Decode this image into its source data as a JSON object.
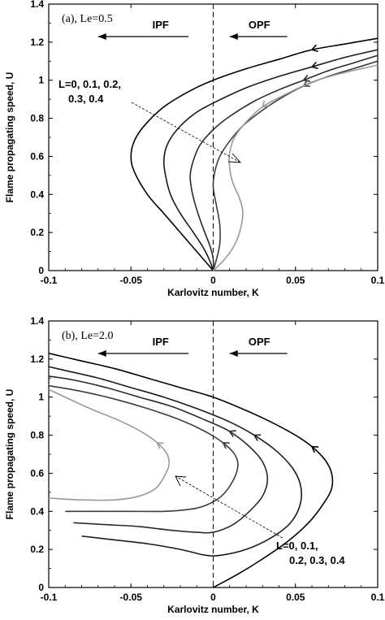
{
  "chart_data": [
    {
      "type": "line",
      "panel_label": "(a), Le=0.5",
      "xlabel": "Karlovitz number, K",
      "ylabel": "Flame propagating speed, U",
      "xlim": [
        -0.1,
        0.1
      ],
      "ylim": [
        0,
        1.4
      ],
      "xticks": [
        -0.1,
        -0.05,
        0,
        0.05,
        0.1
      ],
      "xtick_labels": [
        "-0.1",
        "-0.05",
        "0",
        "0.05",
        "0.1"
      ],
      "yticks": [
        0,
        0.2,
        0.4,
        0.6,
        0.8,
        1,
        1.2,
        1.4
      ],
      "ytick_labels": [
        "0",
        "0.2",
        "0.4",
        "0.6",
        "0.8",
        "1",
        "1.2",
        "1.4"
      ],
      "regions": [
        "IPF",
        "OPF"
      ],
      "annotation": [
        "L=0, 0.1, 0.2,",
        "0.3, 0.4"
      ],
      "series": [
        {
          "color": "#000000",
          "x": [
            0.0,
            -0.005,
            -0.012,
            -0.02,
            -0.03,
            -0.04,
            -0.048,
            -0.05,
            -0.048,
            -0.042,
            -0.03,
            -0.015,
            0.0,
            0.02,
            0.04,
            0.06,
            0.08,
            0.1
          ],
          "y": [
            0.0,
            0.05,
            0.12,
            0.2,
            0.3,
            0.4,
            0.52,
            0.6,
            0.68,
            0.76,
            0.86,
            0.94,
            1.0,
            1.06,
            1.11,
            1.16,
            1.19,
            1.22
          ]
        },
        {
          "color": "#1a1a1a",
          "x": [
            0.0,
            -0.002,
            -0.006,
            -0.012,
            -0.02,
            -0.026,
            -0.029,
            -0.03,
            -0.028,
            -0.022,
            -0.012,
            0.0,
            0.02,
            0.04,
            0.06,
            0.08,
            0.1
          ],
          "y": [
            0.0,
            0.05,
            0.12,
            0.2,
            0.3,
            0.4,
            0.5,
            0.58,
            0.66,
            0.74,
            0.82,
            0.88,
            0.96,
            1.02,
            1.07,
            1.12,
            1.16
          ]
        },
        {
          "color": "#2a2a2a",
          "x": [
            0.0,
            0.0,
            -0.002,
            -0.006,
            -0.01,
            -0.013,
            -0.014,
            -0.012,
            -0.008,
            0.0,
            0.01,
            0.025,
            0.04,
            0.055,
            0.07,
            0.085,
            0.1
          ],
          "y": [
            0.0,
            0.06,
            0.13,
            0.22,
            0.32,
            0.42,
            0.5,
            0.58,
            0.66,
            0.74,
            0.81,
            0.89,
            0.95,
            1.0,
            1.05,
            1.09,
            1.13
          ]
        },
        {
          "color": "#3c3c3c",
          "x": [
            0.0,
            0.002,
            0.004,
            0.004,
            0.002,
            0.0,
            0.001,
            0.004,
            0.01,
            0.018,
            0.028,
            0.04,
            0.055,
            0.07,
            0.085,
            0.1
          ],
          "y": [
            0.0,
            0.06,
            0.14,
            0.24,
            0.34,
            0.44,
            0.52,
            0.6,
            0.68,
            0.76,
            0.83,
            0.9,
            0.97,
            1.02,
            1.06,
            1.1
          ]
        },
        {
          "color": "#999999",
          "x": [
            0.0,
            0.006,
            0.012,
            0.016,
            0.018,
            0.016,
            0.012,
            0.01,
            0.01,
            0.013,
            0.02,
            0.03,
            0.045,
            0.06,
            0.075,
            0.09,
            0.1
          ],
          "y": [
            0.0,
            0.05,
            0.12,
            0.2,
            0.3,
            0.38,
            0.46,
            0.54,
            0.62,
            0.7,
            0.78,
            0.86,
            0.93,
            0.99,
            1.03,
            1.06,
            1.08
          ]
        }
      ]
    },
    {
      "type": "line",
      "panel_label": "(b), Le=2.0",
      "xlabel": "Karlovitz number, K",
      "ylabel": "Flame propagating speed, U",
      "xlim": [
        -0.1,
        0.1
      ],
      "ylim": [
        0,
        1.4
      ],
      "xticks": [
        -0.1,
        -0.05,
        0,
        0.05,
        0.1
      ],
      "xtick_labels": [
        "-0.1",
        "-0.05",
        "0",
        "0.05",
        "0.1"
      ],
      "yticks": [
        0,
        0.2,
        0.4,
        0.6,
        0.8,
        1,
        1.2,
        1.4
      ],
      "ytick_labels": [
        "0",
        "0.2",
        "0.4",
        "0.6",
        "0.8",
        "1",
        "1.2",
        "1.4"
      ],
      "regions": [
        "IPF",
        "OPF"
      ],
      "annotation": [
        "L=0, 0.1,",
        "0.2, 0.3, 0.4"
      ],
      "series": [
        {
          "color": "#000000",
          "x": [
            0.0,
            0.015,
            0.03,
            0.045,
            0.058,
            0.067,
            0.072,
            0.072,
            0.068,
            0.06,
            0.05,
            0.035,
            0.02,
            0.0,
            -0.02,
            -0.04,
            -0.06,
            -0.08,
            -0.1
          ],
          "y": [
            0.0,
            0.07,
            0.15,
            0.24,
            0.34,
            0.44,
            0.52,
            0.6,
            0.67,
            0.74,
            0.8,
            0.87,
            0.93,
            1.0,
            1.05,
            1.1,
            1.15,
            1.19,
            1.23
          ]
        },
        {
          "color": "#1a1a1a",
          "x": [
            -0.08,
            -0.06,
            -0.04,
            -0.02,
            -0.005,
            0.005,
            0.02,
            0.035,
            0.047,
            0.053,
            0.053,
            0.048,
            0.038,
            0.025,
            0.01,
            -0.01,
            -0.03,
            -0.05,
            -0.07,
            -0.09,
            -0.1
          ],
          "y": [
            0.27,
            0.25,
            0.23,
            0.2,
            0.17,
            0.17,
            0.2,
            0.26,
            0.34,
            0.44,
            0.54,
            0.63,
            0.72,
            0.8,
            0.87,
            0.94,
            1.0,
            1.05,
            1.1,
            1.14,
            1.16
          ]
        },
        {
          "color": "#2a2a2a",
          "x": [
            -0.085,
            -0.065,
            -0.045,
            -0.025,
            -0.01,
            0.0,
            0.012,
            0.022,
            0.03,
            0.033,
            0.03,
            0.022,
            0.01,
            -0.005,
            -0.025,
            -0.045,
            -0.065,
            -0.085,
            -0.1
          ],
          "y": [
            0.34,
            0.33,
            0.32,
            0.3,
            0.29,
            0.29,
            0.33,
            0.4,
            0.48,
            0.57,
            0.66,
            0.74,
            0.82,
            0.88,
            0.95,
            1.0,
            1.05,
            1.09,
            1.11
          ]
        },
        {
          "color": "#3c3c3c",
          "x": [
            -0.09,
            -0.07,
            -0.05,
            -0.03,
            -0.015,
            -0.005,
            0.005,
            0.012,
            0.015,
            0.013,
            0.006,
            -0.005,
            -0.02,
            -0.04,
            -0.06,
            -0.08,
            -0.1
          ],
          "y": [
            0.4,
            0.4,
            0.4,
            0.4,
            0.41,
            0.43,
            0.48,
            0.56,
            0.64,
            0.7,
            0.76,
            0.82,
            0.88,
            0.94,
            0.99,
            1.03,
            1.06
          ]
        },
        {
          "color": "#999999",
          "x": [
            -0.1,
            -0.08,
            -0.06,
            -0.045,
            -0.035,
            -0.03,
            -0.027,
            -0.028,
            -0.034,
            -0.044,
            -0.058,
            -0.075,
            -0.09,
            -0.1
          ],
          "y": [
            0.47,
            0.46,
            0.46,
            0.48,
            0.52,
            0.58,
            0.64,
            0.7,
            0.76,
            0.82,
            0.88,
            0.94,
            1.0,
            1.04
          ]
        }
      ]
    }
  ]
}
